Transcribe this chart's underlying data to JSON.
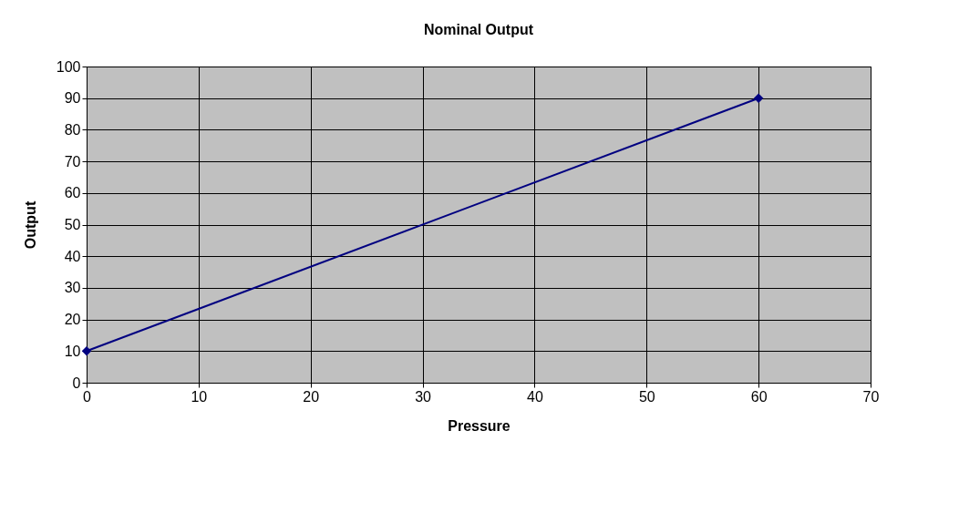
{
  "chart_data": {
    "type": "line",
    "title": "Nominal Output",
    "xlabel": "Pressure",
    "ylabel": "Output",
    "x": [
      0,
      60
    ],
    "series": [
      {
        "color": "#000080",
        "values": [
          10,
          90
        ]
      }
    ],
    "xlim": [
      0,
      70
    ],
    "xticks": [
      0,
      10,
      20,
      30,
      40,
      50,
      60,
      70
    ],
    "ylim": [
      0,
      100
    ],
    "yticks": [
      0,
      10,
      20,
      30,
      40,
      50,
      60,
      70,
      80,
      90,
      100
    ],
    "grid": true,
    "marker": "diamond",
    "line_style": "solid"
  }
}
